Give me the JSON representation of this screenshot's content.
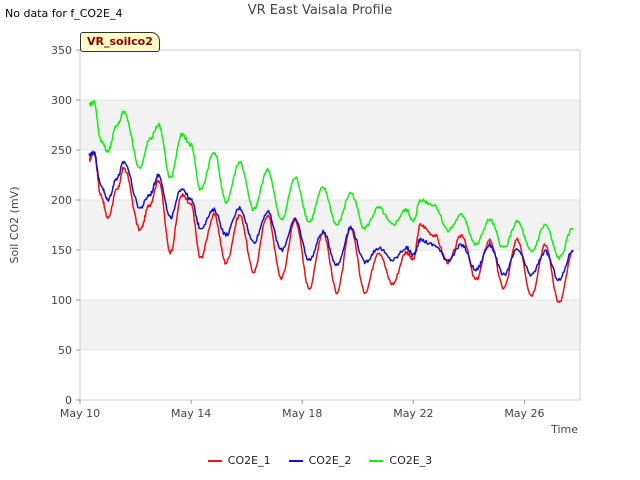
{
  "note": "No data for f_CO2E_4",
  "badge": "VR_soilco2",
  "chart_data": {
    "type": "line",
    "title": "VR East Vaisala Profile",
    "xlabel": "Time",
    "ylabel": "Soil CO2 (mV)",
    "ylim": [
      0,
      350
    ],
    "yticks": [
      0,
      50,
      100,
      150,
      200,
      250,
      300,
      350
    ],
    "xlim": [
      "2024-05-10",
      "2024-05-28"
    ],
    "xticks": [
      "May 10",
      "May 14",
      "May 18",
      "May 22",
      "May 26"
    ],
    "legend_position": "bottom",
    "grid": true,
    "band_fill": "#f2f2f2",
    "series": [
      {
        "name": "CO2E_1",
        "color": "#ee1111",
        "points": [
          [
            "05-10 08:00",
            240
          ],
          [
            "05-10 12:00",
            248
          ],
          [
            "05-10 18:00",
            205
          ],
          [
            "05-11 00:00",
            182
          ],
          [
            "05-11 08:00",
            210
          ],
          [
            "05-11 14:00",
            232
          ],
          [
            "05-12 04:00",
            170
          ],
          [
            "05-12 12:00",
            195
          ],
          [
            "05-12 20:00",
            220
          ],
          [
            "05-13 06:00",
            148
          ],
          [
            "05-13 16:00",
            205
          ],
          [
            "05-14 00:00",
            195
          ],
          [
            "05-14 08:00",
            142
          ],
          [
            "05-14 20:00",
            185
          ],
          [
            "05-15 06:00",
            137
          ],
          [
            "05-15 18:00",
            185
          ],
          [
            "05-16 06:00",
            128
          ],
          [
            "05-16 18:00",
            185
          ],
          [
            "05-17 06:00",
            122
          ],
          [
            "05-17 18:00",
            180
          ],
          [
            "05-18 06:00",
            112
          ],
          [
            "05-18 18:00",
            168
          ],
          [
            "05-19 06:00",
            108
          ],
          [
            "05-19 18:00",
            172
          ],
          [
            "05-20 06:00",
            108
          ],
          [
            "05-20 18:00",
            148
          ],
          [
            "05-21 06:00",
            116
          ],
          [
            "05-21 18:00",
            148
          ],
          [
            "05-22 00:00",
            140
          ],
          [
            "05-22 06:00",
            175
          ],
          [
            "05-22 18:00",
            165
          ],
          [
            "05-23 06:00",
            138
          ],
          [
            "05-23 18:00",
            165
          ],
          [
            "05-24 06:00",
            120
          ],
          [
            "05-24 18:00",
            160
          ],
          [
            "05-25 06:00",
            112
          ],
          [
            "05-25 18:00",
            160
          ],
          [
            "05-26 06:00",
            105
          ],
          [
            "05-26 18:00",
            155
          ],
          [
            "05-27 06:00",
            97
          ],
          [
            "05-27 18:00",
            148
          ]
        ]
      },
      {
        "name": "CO2E_2",
        "color": "#1111cc",
        "points": [
          [
            "05-10 08:00",
            245
          ],
          [
            "05-10 12:00",
            248
          ],
          [
            "05-10 18:00",
            215
          ],
          [
            "05-11 00:00",
            200
          ],
          [
            "05-11 08:00",
            222
          ],
          [
            "05-11 14:00",
            238
          ],
          [
            "05-12 04:00",
            192
          ],
          [
            "05-12 12:00",
            205
          ],
          [
            "05-12 20:00",
            225
          ],
          [
            "05-13 06:00",
            182
          ],
          [
            "05-13 16:00",
            212
          ],
          [
            "05-14 00:00",
            200
          ],
          [
            "05-14 08:00",
            172
          ],
          [
            "05-14 20:00",
            190
          ],
          [
            "05-15 06:00",
            165
          ],
          [
            "05-15 18:00",
            192
          ],
          [
            "05-16 06:00",
            158
          ],
          [
            "05-16 18:00",
            188
          ],
          [
            "05-17 06:00",
            150
          ],
          [
            "05-17 18:00",
            180
          ],
          [
            "05-18 06:00",
            140
          ],
          [
            "05-18 18:00",
            168
          ],
          [
            "05-19 06:00",
            135
          ],
          [
            "05-19 18:00",
            172
          ],
          [
            "05-20 06:00",
            138
          ],
          [
            "05-20 18:00",
            152
          ],
          [
            "05-21 06:00",
            140
          ],
          [
            "05-21 18:00",
            152
          ],
          [
            "05-22 00:00",
            145
          ],
          [
            "05-22 06:00",
            160
          ],
          [
            "05-22 18:00",
            155
          ],
          [
            "05-23 06:00",
            140
          ],
          [
            "05-23 18:00",
            155
          ],
          [
            "05-24 06:00",
            130
          ],
          [
            "05-24 18:00",
            155
          ],
          [
            "05-25 06:00",
            125
          ],
          [
            "05-25 18:00",
            150
          ],
          [
            "05-26 06:00",
            125
          ],
          [
            "05-26 18:00",
            148
          ],
          [
            "05-27 06:00",
            120
          ],
          [
            "05-27 18:00",
            150
          ]
        ]
      },
      {
        "name": "CO2E_3",
        "color": "#11ee11",
        "points": [
          [
            "05-10 08:00",
            295
          ],
          [
            "05-10 12:00",
            298
          ],
          [
            "05-10 18:00",
            260
          ],
          [
            "05-11 00:00",
            248
          ],
          [
            "05-11 08:00",
            275
          ],
          [
            "05-11 14:00",
            288
          ],
          [
            "05-12 04:00",
            232
          ],
          [
            "05-12 12:00",
            260
          ],
          [
            "05-12 20:00",
            275
          ],
          [
            "05-13 06:00",
            222
          ],
          [
            "05-13 16:00",
            265
          ],
          [
            "05-14 00:00",
            255
          ],
          [
            "05-14 08:00",
            210
          ],
          [
            "05-14 20:00",
            248
          ],
          [
            "05-15 06:00",
            198
          ],
          [
            "05-15 18:00",
            238
          ],
          [
            "05-16 06:00",
            190
          ],
          [
            "05-16 18:00",
            230
          ],
          [
            "05-17 06:00",
            180
          ],
          [
            "05-17 18:00",
            222
          ],
          [
            "05-18 06:00",
            178
          ],
          [
            "05-18 18:00",
            212
          ],
          [
            "05-19 06:00",
            175
          ],
          [
            "05-19 18:00",
            207
          ],
          [
            "05-20 06:00",
            172
          ],
          [
            "05-20 18:00",
            192
          ],
          [
            "05-21 06:00",
            175
          ],
          [
            "05-21 18:00",
            190
          ],
          [
            "05-22 00:00",
            178
          ],
          [
            "05-22 06:00",
            200
          ],
          [
            "05-22 18:00",
            195
          ],
          [
            "05-23 06:00",
            170
          ],
          [
            "05-23 18:00",
            185
          ],
          [
            "05-24 06:00",
            155
          ],
          [
            "05-24 18:00",
            180
          ],
          [
            "05-25 06:00",
            152
          ],
          [
            "05-25 18:00",
            178
          ],
          [
            "05-26 06:00",
            148
          ],
          [
            "05-26 18:00",
            175
          ],
          [
            "05-27 06:00",
            142
          ],
          [
            "05-27 18:00",
            172
          ]
        ]
      }
    ]
  }
}
